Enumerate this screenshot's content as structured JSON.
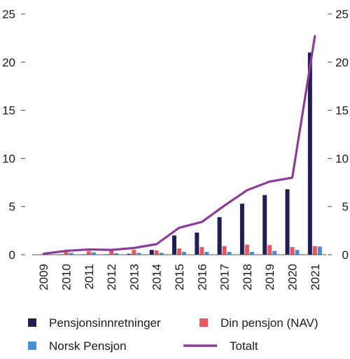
{
  "chart_data": {
    "type": "bar",
    "title": "",
    "xlabel": "",
    "ylabel": "",
    "ylim": [
      0,
      25
    ],
    "yticks": [
      0,
      5,
      10,
      15,
      20,
      25
    ],
    "grid": false,
    "legend_position": "bottom",
    "categories": [
      "2009",
      "2010",
      "2011",
      "2012",
      "2013",
      "2014",
      "2015",
      "2016",
      "2017",
      "2018",
      "2019",
      "2020",
      "2021"
    ],
    "series": [
      {
        "name": "Pensjonsinnretninger",
        "kind": "bar",
        "color": "#1f1f55",
        "values": [
          0,
          0.05,
          0.05,
          0.05,
          0.1,
          0.5,
          2.0,
          2.3,
          3.9,
          5.3,
          6.2,
          6.8,
          21.0
        ]
      },
      {
        "name": "Din pensjon (NAV)",
        "kind": "bar",
        "color": "#e8585f",
        "values": [
          0,
          0.3,
          0.4,
          0.4,
          0.5,
          0.45,
          0.65,
          0.8,
          0.9,
          1.05,
          1.0,
          0.8,
          0.9
        ]
      },
      {
        "name": "Norsk Pensjon",
        "kind": "bar",
        "color": "#4a8fcf",
        "values": [
          0,
          0.2,
          0.25,
          0.15,
          0.2,
          0.2,
          0.3,
          0.3,
          0.3,
          0.3,
          0.4,
          0.5,
          0.85
        ]
      },
      {
        "name": "Totalt",
        "kind": "line",
        "color": "#8e3a9b",
        "values": [
          0.1,
          0.4,
          0.55,
          0.5,
          0.7,
          1.1,
          2.8,
          3.4,
          5.1,
          6.7,
          7.6,
          8.0,
          22.7
        ]
      }
    ]
  }
}
